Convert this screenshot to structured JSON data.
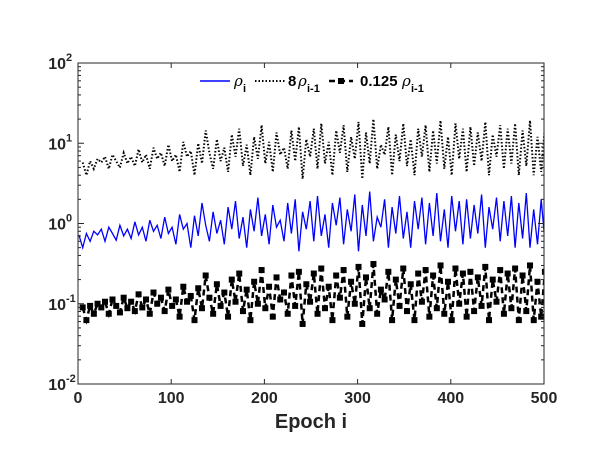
{
  "chart_data": {
    "type": "line",
    "xlabel": "Epoch i",
    "ylabel": "",
    "xlim": [
      0,
      500
    ],
    "ylim": [
      0.01,
      100
    ],
    "yscale": "log",
    "grid": false,
    "legend_position": "top-center",
    "x_ticks": [
      0,
      100,
      200,
      300,
      400,
      500
    ],
    "y_ticks": [
      {
        "value": 0.01,
        "base": "10",
        "exp": "-2"
      },
      {
        "value": 0.1,
        "base": "10",
        "exp": "-1"
      },
      {
        "value": 1,
        "base": "10",
        "exp": "0"
      },
      {
        "value": 10,
        "base": "10",
        "exp": "1"
      },
      {
        "value": 100,
        "base": "10",
        "exp": "2"
      }
    ],
    "series": [
      {
        "legend_symbol": "ρ",
        "legend_subscript": "i",
        "legend_prefix": "",
        "color": "#0000ff",
        "style": "solid",
        "marker": "none",
        "x_start": 1,
        "x_step": 4,
        "values": [
          0.72,
          0.5,
          0.75,
          0.6,
          0.8,
          0.72,
          0.85,
          0.6,
          0.9,
          0.75,
          0.62,
          0.95,
          0.7,
          0.85,
          0.65,
          1.05,
          0.72,
          0.9,
          0.6,
          1.1,
          0.8,
          0.95,
          0.65,
          1.2,
          0.75,
          0.9,
          0.55,
          1.3,
          0.85,
          1.0,
          0.5,
          1.25,
          0.7,
          1.8,
          0.95,
          0.6,
          1.4,
          0.75,
          1.1,
          0.55,
          1.6,
          0.85,
          1.9,
          0.65,
          1.2,
          0.5,
          1.5,
          0.8,
          2.1,
          0.7,
          1.3,
          0.55,
          1.7,
          0.9,
          1.1,
          0.6,
          1.8,
          0.75,
          2.0,
          0.45,
          1.4,
          0.85,
          1.9,
          0.6,
          2.2,
          0.7,
          1.3,
          0.5,
          1.8,
          0.95,
          2.1,
          0.55,
          1.5,
          0.8,
          2.3,
          0.45,
          1.7,
          0.7,
          2.5,
          0.6,
          1.2,
          0.9,
          2.0,
          0.5,
          1.6,
          0.75,
          2.2,
          0.65,
          1.4,
          0.5,
          1.9,
          0.85,
          2.1,
          0.55,
          1.8,
          0.7,
          2.4,
          0.6,
          1.5,
          0.5,
          2.2,
          0.8,
          1.9,
          0.55,
          2.0,
          0.65,
          1.7,
          0.75,
          2.3,
          0.5,
          1.6,
          0.85,
          2.1,
          0.6,
          1.9,
          0.7,
          2.2,
          0.5,
          1.8,
          0.65,
          2.4,
          0.5,
          1.5,
          0.55,
          2.0,
          0.6
        ]
      },
      {
        "legend_symbol": "ρ",
        "legend_subscript": "i-1",
        "legend_prefix": "8",
        "color": "#000000",
        "style": "dotted",
        "marker": "none",
        "x_start": 5,
        "x_step": 4,
        "values": [
          5.76,
          4.0,
          6.0,
          4.8,
          6.4,
          5.76,
          6.8,
          4.8,
          7.2,
          6.0,
          4.96,
          7.6,
          5.6,
          6.8,
          5.2,
          8.4,
          5.76,
          7.2,
          4.8,
          8.8,
          6.4,
          7.6,
          5.2,
          9.6,
          6.0,
          7.2,
          4.4,
          10.4,
          6.8,
          8.0,
          4.0,
          10.0,
          5.6,
          14.4,
          7.6,
          4.8,
          11.2,
          6.0,
          8.8,
          4.4,
          12.8,
          6.8,
          15.2,
          5.2,
          9.6,
          4.0,
          12.0,
          6.4,
          16.8,
          5.6,
          10.4,
          4.4,
          13.6,
          7.2,
          8.8,
          4.8,
          14.4,
          6.0,
          16.0,
          3.6,
          11.2,
          6.8,
          15.2,
          4.8,
          17.6,
          5.6,
          10.4,
          4.0,
          14.4,
          7.6,
          16.8,
          4.4,
          12.0,
          6.4,
          18.4,
          3.6,
          13.6,
          5.6,
          20.0,
          4.8,
          9.6,
          7.2,
          16.0,
          4.0,
          12.8,
          6.0,
          17.6,
          5.2,
          11.2,
          4.0,
          15.2,
          6.8,
          16.8,
          4.4,
          14.4,
          5.6,
          19.2,
          4.8,
          12.0,
          4.0,
          17.6,
          6.4,
          15.2,
          4.4,
          16.0,
          5.2,
          13.6,
          6.0,
          18.4,
          4.0,
          12.8,
          6.8,
          16.8,
          4.8,
          15.2,
          5.6,
          17.6,
          4.0,
          14.4,
          5.2,
          19.2,
          4.0,
          12.0,
          4.4,
          16.0
        ]
      },
      {
        "legend_symbol": "ρ",
        "legend_subscript": "i-1",
        "legend_prefix": "0.125",
        "color": "#000000",
        "style": "dashed",
        "marker": "square",
        "x_start": 5,
        "x_step": 4,
        "values": [
          0.09,
          0.0625,
          0.094,
          0.075,
          0.1,
          0.09,
          0.106,
          0.075,
          0.113,
          0.094,
          0.078,
          0.119,
          0.088,
          0.106,
          0.081,
          0.131,
          0.09,
          0.113,
          0.075,
          0.138,
          0.1,
          0.119,
          0.081,
          0.15,
          0.094,
          0.113,
          0.069,
          0.163,
          0.106,
          0.125,
          0.0625,
          0.156,
          0.088,
          0.225,
          0.119,
          0.075,
          0.175,
          0.094,
          0.138,
          0.069,
          0.2,
          0.106,
          0.238,
          0.081,
          0.15,
          0.0625,
          0.188,
          0.1,
          0.263,
          0.088,
          0.163,
          0.069,
          0.213,
          0.113,
          0.138,
          0.075,
          0.225,
          0.094,
          0.25,
          0.056,
          0.175,
          0.106,
          0.238,
          0.075,
          0.275,
          0.088,
          0.163,
          0.0625,
          0.225,
          0.119,
          0.263,
          0.069,
          0.188,
          0.1,
          0.288,
          0.056,
          0.213,
          0.088,
          0.313,
          0.075,
          0.15,
          0.113,
          0.25,
          0.0625,
          0.2,
          0.094,
          0.275,
          0.081,
          0.175,
          0.0625,
          0.238,
          0.106,
          0.263,
          0.069,
          0.225,
          0.088,
          0.3,
          0.075,
          0.188,
          0.0625,
          0.275,
          0.1,
          0.238,
          0.069,
          0.25,
          0.081,
          0.213,
          0.094,
          0.288,
          0.0625,
          0.2,
          0.106,
          0.263,
          0.075,
          0.238,
          0.088,
          0.275,
          0.0625,
          0.225,
          0.081,
          0.3,
          0.0625,
          0.188,
          0.069,
          0.25
        ]
      }
    ]
  }
}
